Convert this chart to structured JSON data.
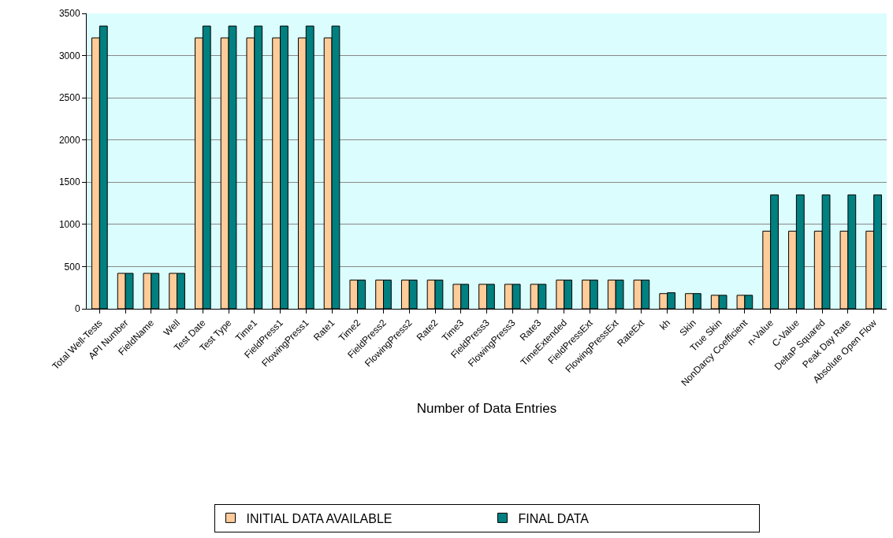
{
  "chart_data": {
    "type": "bar",
    "xlabel": "Number of Data Entries",
    "categories": [
      "Total Well-Tests",
      "API Number",
      "FieldName",
      "Well",
      "Test Date",
      "Test Type",
      "Time1",
      "FieldPress1",
      "FlowingPress1",
      "Rate1",
      "Time2",
      "FieldPress2",
      "FlowingPress2",
      "Rate2",
      "Time3",
      "FieldPress3",
      "FlowingPress3",
      "Rate3",
      "TimeExtended",
      "FieldPressExt",
      "FlowingPressExt",
      "RateExt",
      "kh",
      "Skin",
      "True Skin",
      "NonDarcy Coefficient",
      "n-Value",
      "C-Value",
      "DeltaP Squared",
      "Peak Day Rate",
      "Absolute Open Flow"
    ],
    "series": [
      {
        "name": "INITIAL DATA AVAILABLE",
        "color": "#ffcc99",
        "values": [
          3210,
          420,
          420,
          420,
          3210,
          3210,
          3210,
          3210,
          3210,
          3210,
          340,
          340,
          340,
          340,
          290,
          290,
          290,
          290,
          340,
          340,
          340,
          340,
          180,
          180,
          160,
          160,
          920,
          920,
          920,
          920,
          920
        ]
      },
      {
        "name": "FINAL DATA",
        "color": "#008080",
        "values": [
          3350,
          420,
          420,
          420,
          3350,
          3350,
          3350,
          3350,
          3350,
          3350,
          340,
          340,
          340,
          340,
          290,
          290,
          290,
          290,
          340,
          340,
          340,
          340,
          190,
          180,
          160,
          160,
          1350,
          1350,
          1350,
          1350,
          1350
        ]
      }
    ],
    "ylim": [
      0,
      3500
    ],
    "yticks": [
      0,
      500,
      1000,
      1500,
      2000,
      2500,
      3000,
      3500
    ],
    "grid": "y",
    "legend": "bottom"
  }
}
